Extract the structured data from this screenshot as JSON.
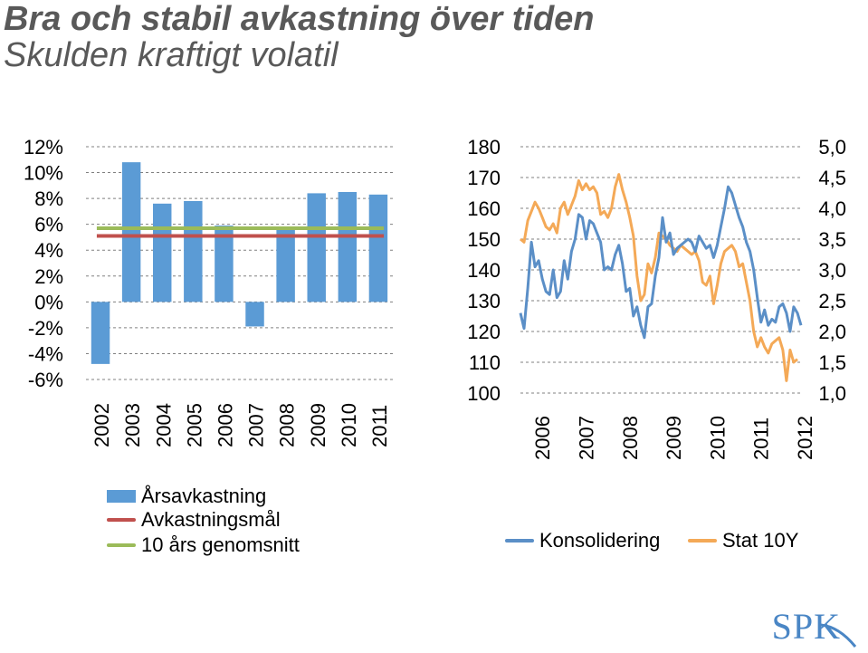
{
  "title": "Bra och stabil avkastning över tiden",
  "subtitle": "Skulden kraftigt volatil",
  "colors": {
    "bar": "#5b9bd5",
    "target": "#c0504d",
    "avg10": "#9bbb59",
    "konsolidering": "#5b8fc7",
    "stat10y": "#f4a957",
    "grid": "#808080"
  },
  "chart_data": [
    {
      "type": "bar",
      "categories": [
        "2002",
        "2003",
        "2004",
        "2005",
        "2006",
        "2007",
        "2008",
        "2009",
        "2010",
        "2011"
      ],
      "series": [
        {
          "name": "Årsavkastning",
          "values": [
            -4.8,
            10.8,
            7.6,
            7.8,
            5.9,
            -1.9,
            5.6,
            8.4,
            8.5,
            8.3
          ]
        },
        {
          "name": "Avkastningsmål",
          "type": "line",
          "value": 5.1
        },
        {
          "name": "10 års genomsnitt",
          "type": "line",
          "value": 5.7
        }
      ],
      "ylim": [
        -6,
        12
      ],
      "yticks": [
        "12%",
        "10%",
        "8%",
        "6%",
        "4%",
        "2%",
        "0%",
        "-2%",
        "-4%",
        "-6%"
      ],
      "grid": true
    },
    {
      "type": "line",
      "x_start": "2006-01",
      "x_step": "month",
      "xticks": [
        "2006",
        "2007",
        "2008",
        "2009",
        "2010",
        "2011",
        "2012"
      ],
      "series": [
        {
          "name": "Konsolidering",
          "axis": "left",
          "values": [
            126,
            121,
            134,
            149,
            141,
            143,
            137,
            133,
            132,
            140,
            131,
            133,
            143,
            137,
            146,
            150,
            158,
            157,
            150,
            156,
            155,
            152,
            149,
            140,
            141,
            140,
            145,
            148,
            142,
            133,
            134,
            125,
            128,
            122,
            118,
            128,
            129,
            138,
            144,
            157,
            149,
            152,
            145,
            147,
            148,
            149,
            150,
            149,
            146,
            151,
            149,
            147,
            148,
            144,
            148,
            154,
            160,
            167,
            165,
            161,
            157,
            154,
            149,
            146,
            140,
            131,
            123,
            127,
            122,
            124,
            123,
            128,
            129,
            126,
            120,
            128,
            126,
            122
          ]
        },
        {
          "name": "Stat 10Y",
          "axis": "right",
          "values": [
            3.5,
            3.45,
            3.8,
            3.95,
            4.1,
            4.0,
            3.85,
            3.7,
            3.65,
            3.75,
            3.6,
            4.0,
            4.1,
            3.9,
            4.05,
            4.2,
            4.45,
            4.3,
            4.4,
            4.3,
            4.35,
            4.25,
            3.9,
            3.95,
            3.85,
            4.0,
            4.35,
            4.55,
            4.3,
            4.1,
            3.85,
            3.55,
            2.9,
            2.5,
            2.6,
            3.1,
            2.95,
            3.2,
            3.6,
            3.55,
            3.5,
            3.4,
            3.35,
            3.3,
            3.4,
            3.35,
            3.3,
            3.25,
            3.3,
            3.15,
            2.8,
            2.75,
            2.9,
            2.45,
            2.75,
            3.1,
            3.3,
            3.35,
            3.4,
            3.3,
            3.05,
            3.1,
            2.8,
            2.5,
            2.0,
            1.75,
            1.9,
            1.75,
            1.65,
            1.8,
            1.85,
            1.9,
            1.7,
            1.2,
            1.7,
            1.5,
            1.55
          ]
        }
      ],
      "y_left": {
        "ylim": [
          100,
          180
        ],
        "yticks": [
          "180",
          "170",
          "160",
          "150",
          "140",
          "130",
          "120",
          "110",
          "100"
        ]
      },
      "y_right": {
        "ylim": [
          1.0,
          5.0
        ],
        "yticks": [
          "5,0",
          "4,5",
          "4,0",
          "3,5",
          "3,0",
          "2,5",
          "2,0",
          "1,5",
          "1,0"
        ]
      },
      "grid": true
    }
  ],
  "legend_left": [
    {
      "label": "Årsavkastning",
      "kind": "bar",
      "color": "#5b9bd5"
    },
    {
      "label": "Avkastningsmål",
      "kind": "line",
      "color": "#c0504d"
    },
    {
      "label": "10 års genomsnitt",
      "kind": "line",
      "color": "#9bbb59"
    }
  ],
  "legend_right": [
    {
      "label": "Konsolidering",
      "color": "#5b8fc7"
    },
    {
      "label": "Stat 10Y",
      "color": "#f4a957"
    }
  ],
  "logo": "SPK"
}
